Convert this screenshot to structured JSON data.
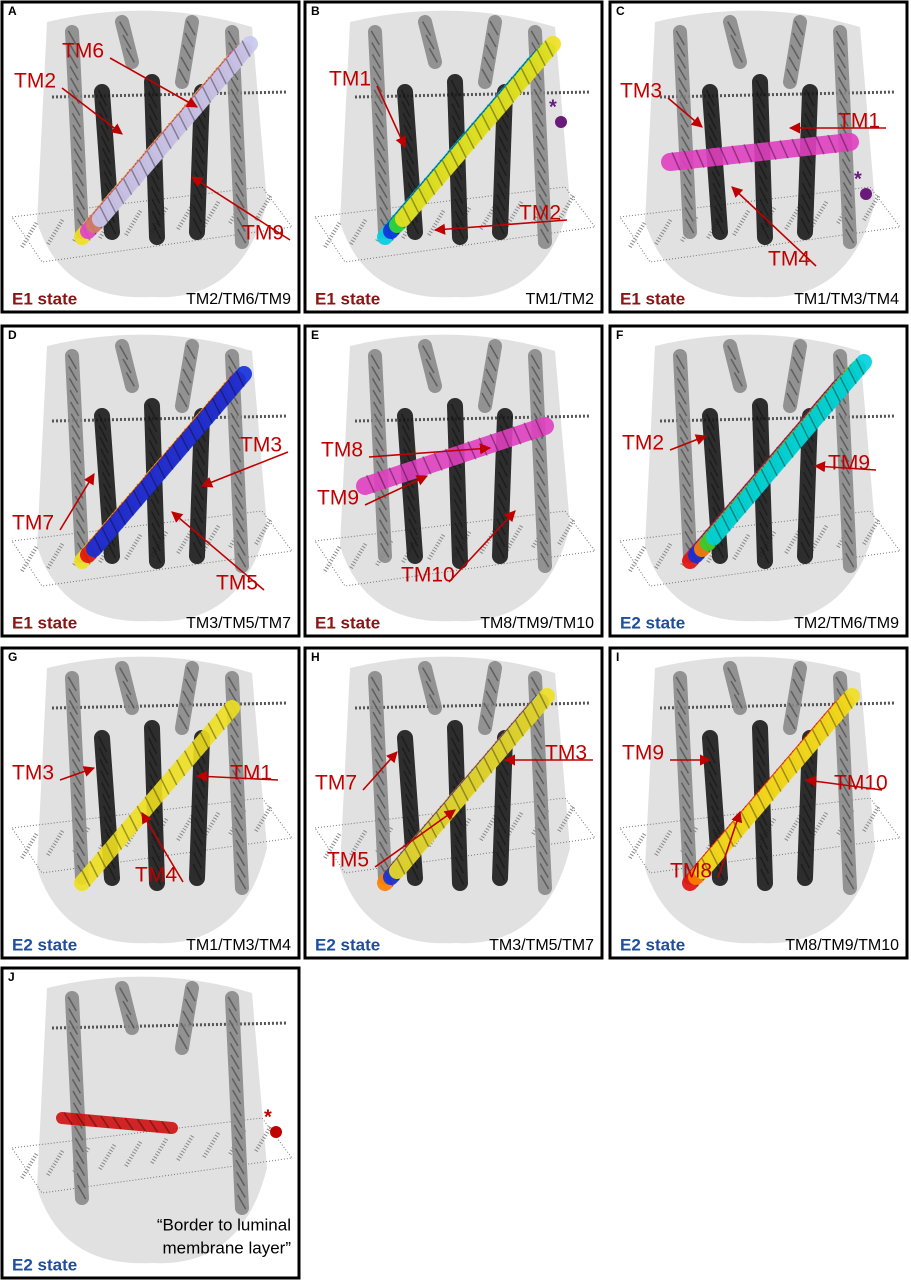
{
  "panels": [
    {
      "letter": "A",
      "labels": [
        "TM6",
        "TM2",
        "TM9"
      ],
      "state": "E1 state",
      "state_color": "#8b1414",
      "combination": "TM2/TM6/TM9"
    },
    {
      "letter": "B",
      "labels": [
        "TM1",
        "TM2"
      ],
      "marker": "*",
      "state": "E1 state",
      "state_color": "#8b1414",
      "combination": "TM1/TM2"
    },
    {
      "letter": "C",
      "labels": [
        "TM3",
        "TM1",
        "TM4"
      ],
      "marker": "*",
      "state": "E1 state",
      "state_color": "#8b1414",
      "combination": "TM1/TM3/TM4"
    },
    {
      "letter": "D",
      "labels": [
        "TM3",
        "TM7",
        "TM5"
      ],
      "state": "E1 state",
      "state_color": "#8b1414",
      "combination": "TM3/TM5/TM7"
    },
    {
      "letter": "E",
      "labels": [
        "TM8",
        "TM9",
        "TM10"
      ],
      "state": "E1 state",
      "state_color": "#8b1414",
      "combination": "TM8/TM9/TM10"
    },
    {
      "letter": "F",
      "labels": [
        "TM2",
        "TM9"
      ],
      "state": "E2 state",
      "state_color": "#1f4e9c",
      "combination": "TM2/TM6/TM9"
    },
    {
      "letter": "G",
      "labels": [
        "TM3",
        "TM1",
        "TM4"
      ],
      "state": "E2 state",
      "state_color": "#1f4e9c",
      "combination": "TM1/TM3/TM4"
    },
    {
      "letter": "H",
      "labels": [
        "TM3",
        "TM7",
        "TM5"
      ],
      "state": "E2 state",
      "state_color": "#1f4e9c",
      "combination": "TM3/TM5/TM7"
    },
    {
      "letter": "I",
      "labels": [
        "TM9",
        "TM10",
        "TM8"
      ],
      "state": "E2 state",
      "state_color": "#1f4e9c",
      "combination": "TM8/TM9/TM10"
    },
    {
      "letter": "J",
      "marker": "*",
      "annotation": [
        "“Border to luminal",
        "membrane layer”"
      ],
      "state": "E2 state",
      "state_color": "#1f4e9c"
    }
  ]
}
